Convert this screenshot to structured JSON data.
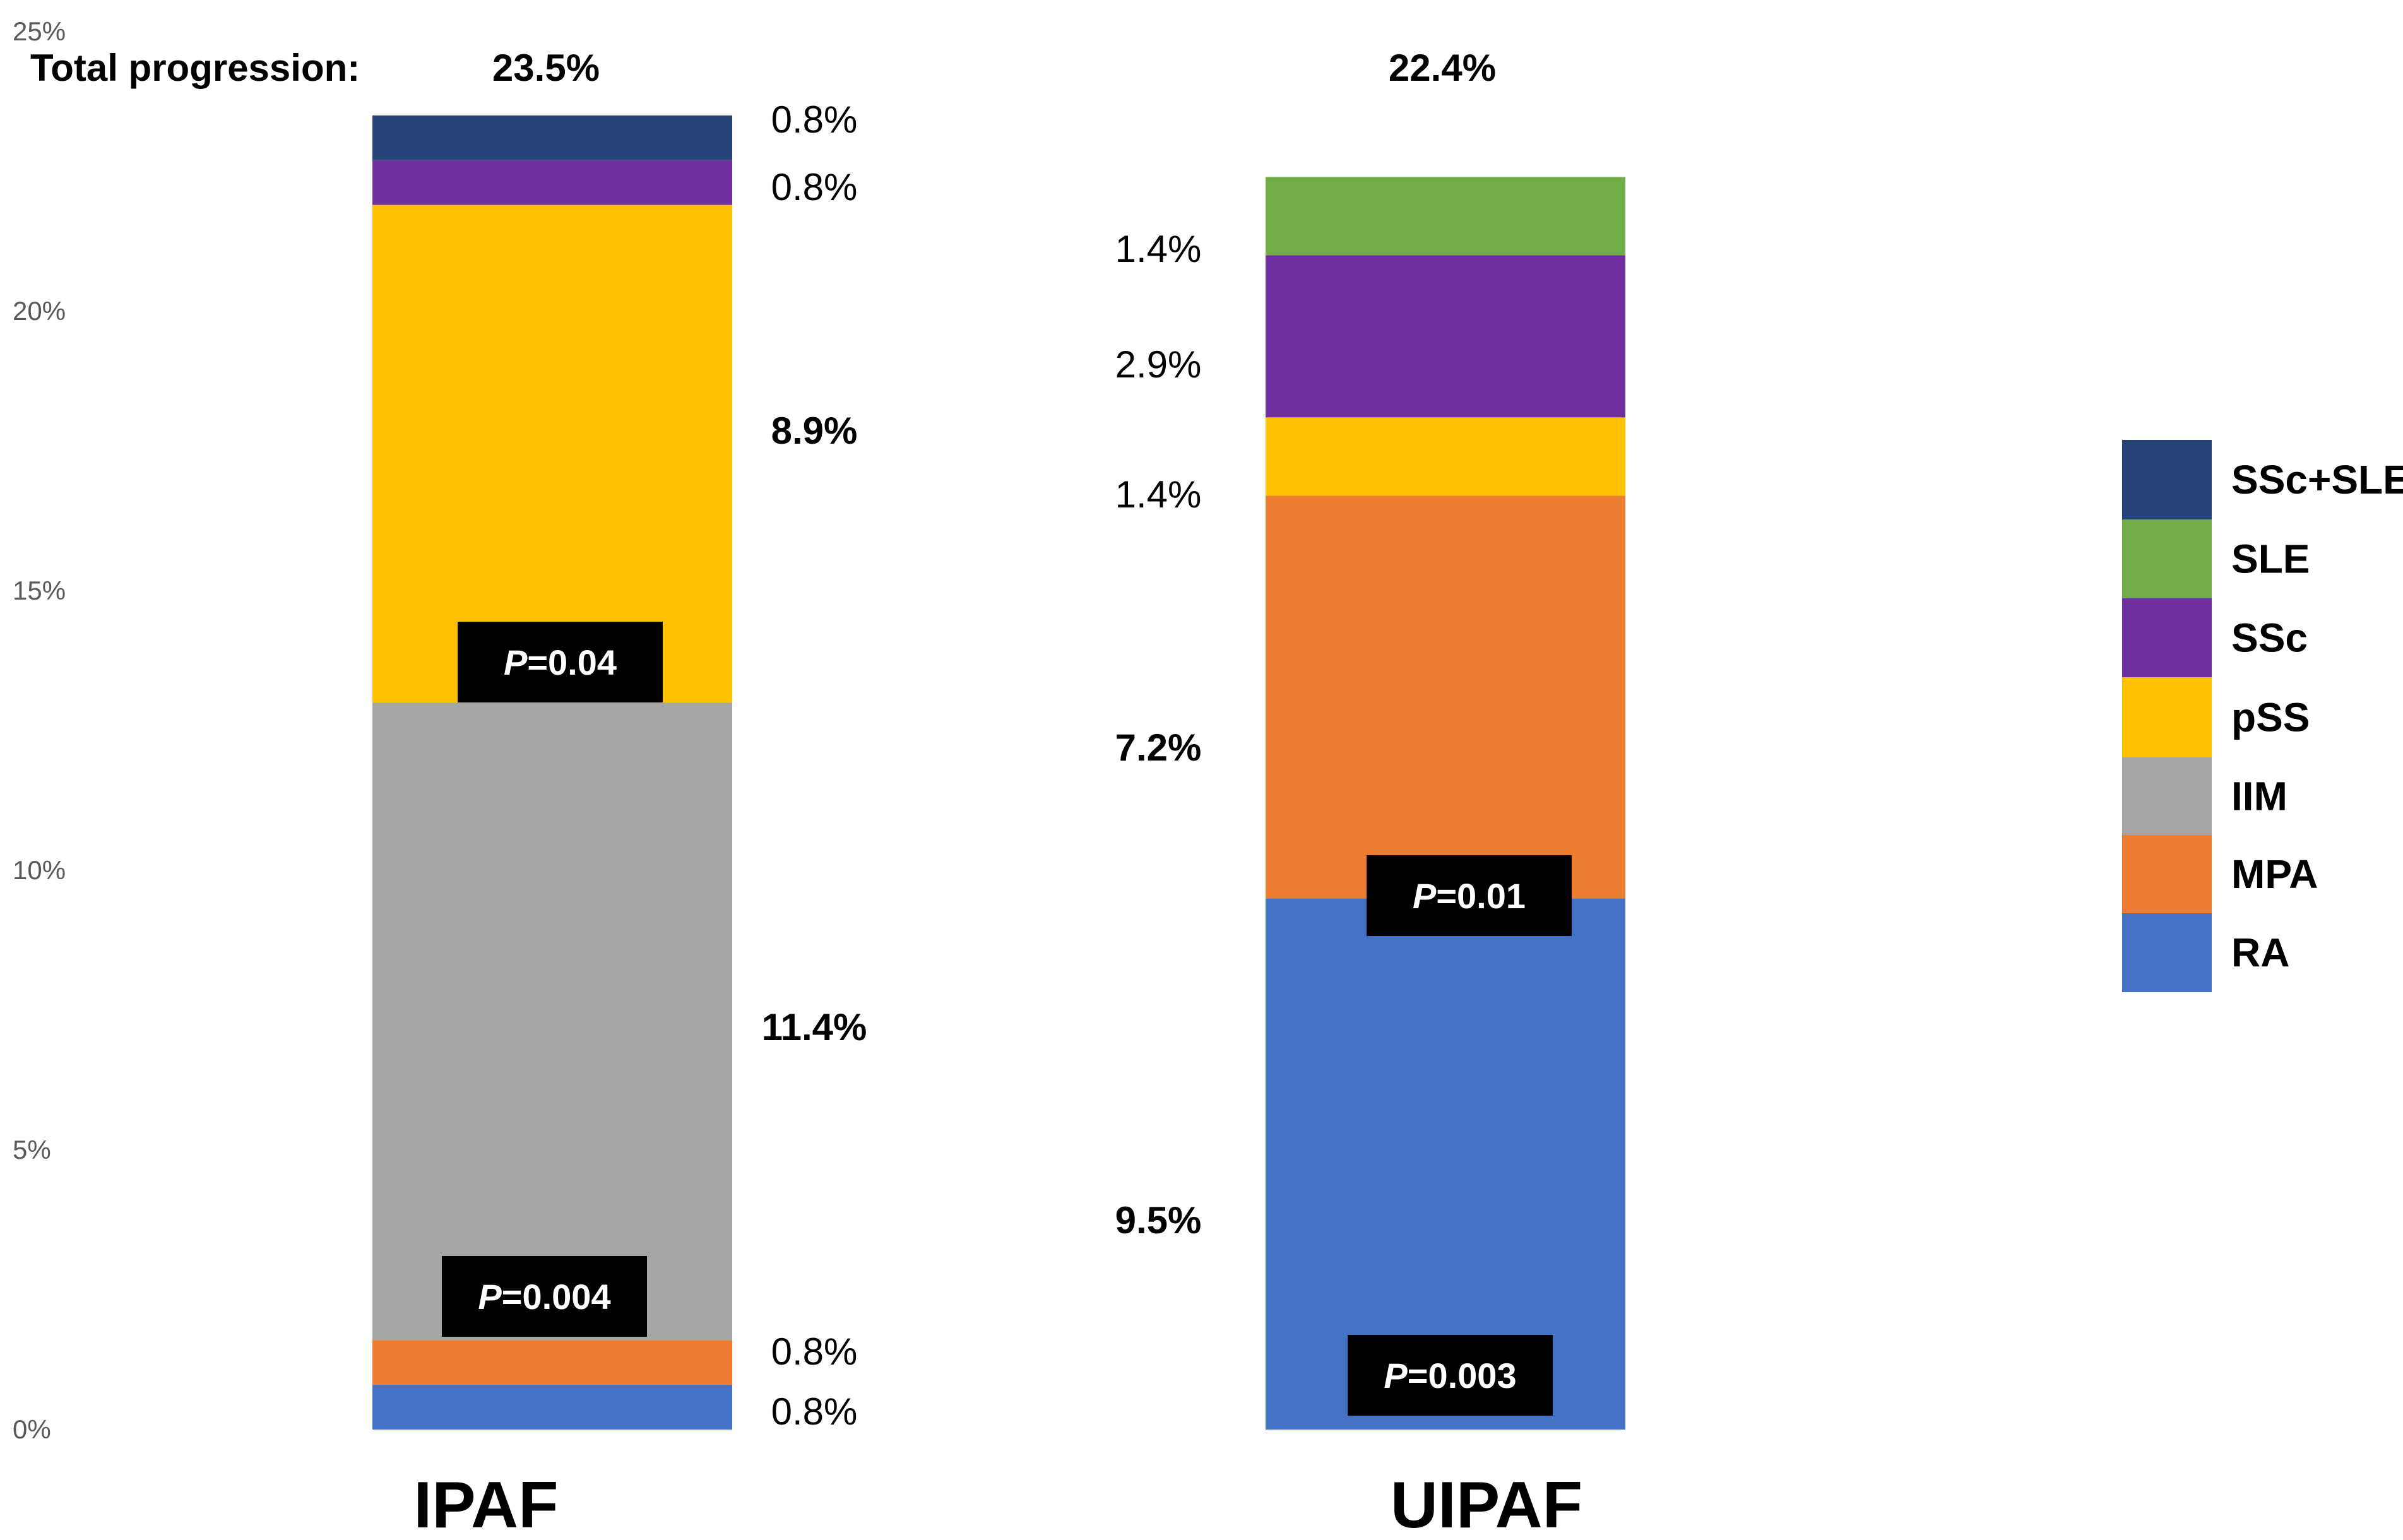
{
  "chart_data": {
    "type": "bar",
    "stacked": true,
    "categories": [
      "IPAF",
      "UIPAF"
    ],
    "ylim": [
      0,
      25
    ],
    "y_ticks": [
      "0%",
      "5%",
      "10%",
      "15%",
      "20%",
      "25%"
    ],
    "grid": false,
    "legend_position": "right",
    "total_label": "Total progression:",
    "totals": [
      "23.5%",
      "22.4%"
    ],
    "series": [
      {
        "name": "RA",
        "color": "#4472C4",
        "values": [
          0.8,
          9.5
        ],
        "labels": [
          "0.8%",
          "9.5%"
        ],
        "bold": [
          false,
          true
        ]
      },
      {
        "name": "MPA",
        "color": "#ED7D31",
        "values": [
          0.8,
          7.2
        ],
        "labels": [
          "0.8%",
          "7.2%"
        ],
        "bold": [
          false,
          true
        ]
      },
      {
        "name": "IIM",
        "color": "#A5A5A5",
        "values": [
          11.4,
          0
        ],
        "labels": [
          "11.4%",
          ""
        ],
        "bold": [
          true,
          false
        ]
      },
      {
        "name": "pSS",
        "color": "#FFC000",
        "values": [
          8.9,
          1.4
        ],
        "labels": [
          "8.9%",
          "1.4%"
        ],
        "bold": [
          true,
          false
        ]
      },
      {
        "name": "SSc",
        "color": "#7030A0",
        "values": [
          0.8,
          2.9
        ],
        "labels": [
          "0.8%",
          "2.9%"
        ],
        "bold": [
          false,
          false
        ]
      },
      {
        "name": "SLE",
        "color": "#70AD47",
        "values": [
          0,
          1.4
        ],
        "labels": [
          "",
          "1.4%"
        ],
        "bold": [
          false,
          false
        ]
      },
      {
        "name": "SSc+SLE",
        "color": "#264478",
        "values": [
          0.8,
          0
        ],
        "labels": [
          "0.8%",
          ""
        ],
        "bold": [
          false,
          false
        ]
      }
    ],
    "legend_order": [
      "SSc+SLE",
      "SLE",
      "SSc",
      "pSS",
      "IIM",
      "MPA",
      "RA"
    ],
    "annotations": [
      {
        "category": "IPAF",
        "series": "pSS",
        "p_label": "P",
        "p_value": "=0.04"
      },
      {
        "category": "IPAF",
        "series": "IIM",
        "p_label": "P",
        "p_value": "=0.004"
      },
      {
        "category": "UIPAF",
        "series": "MPA",
        "p_label": "P",
        "p_value": "=0.01"
      },
      {
        "category": "UIPAF",
        "series": "RA",
        "p_label": "P",
        "p_value": "=0.003"
      }
    ]
  }
}
